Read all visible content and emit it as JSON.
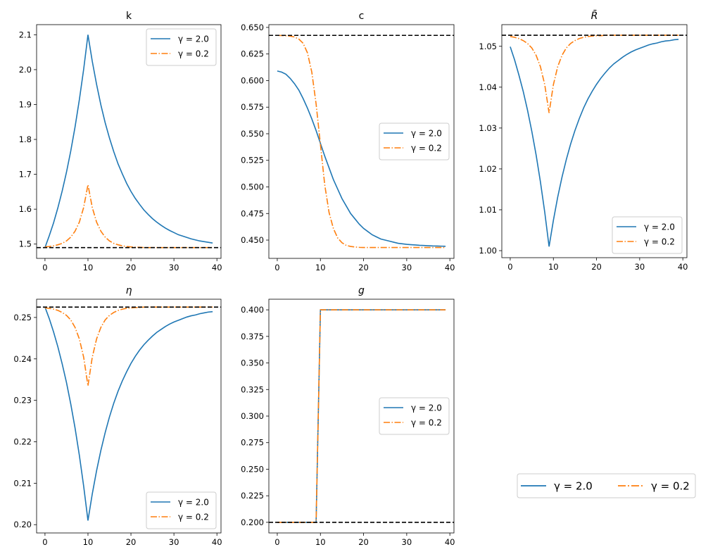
{
  "colors": {
    "series_1": "#1f77b4",
    "series_2": "#ff7f0e",
    "steady_state": "#000000"
  },
  "figure_legend": {
    "placement": "lower-right",
    "orientation": "horizontal",
    "entries": [
      "γ = 2.0",
      "γ = 0.2"
    ]
  },
  "chart_data": [
    {
      "type": "line",
      "title": "k",
      "title_italic": false,
      "legend": "upper-right",
      "xlim": [
        -1.95,
        40.95
      ],
      "ylim": [
        1.459,
        2.129
      ],
      "xticks": [
        0,
        10,
        20,
        30,
        40
      ],
      "xtick_labels": [
        "0",
        "10",
        "20",
        "30",
        "40"
      ],
      "yticks": [
        1.5,
        1.6,
        1.7,
        1.8,
        1.9,
        2.0,
        2.1
      ],
      "ytick_labels": [
        "1.5",
        "1.6",
        "1.7",
        "1.8",
        "1.9",
        "2.0",
        "2.1"
      ],
      "steady_state": 1.49,
      "x": [
        0,
        1,
        2,
        3,
        4,
        5,
        6,
        7,
        8,
        9,
        10,
        11,
        12,
        13,
        14,
        15,
        16,
        17,
        18,
        19,
        20,
        21,
        22,
        23,
        24,
        25,
        26,
        27,
        28,
        29,
        30,
        31,
        32,
        33,
        34,
        35,
        36,
        37,
        38,
        39
      ],
      "series": [
        {
          "name": "γ = 2.0",
          "style": "solid",
          "values": [
            1.49,
            1.524,
            1.561,
            1.604,
            1.652,
            1.706,
            1.767,
            1.836,
            1.914,
            2.001,
            2.1,
            2.024,
            1.958,
            1.899,
            1.848,
            1.804,
            1.765,
            1.73,
            1.701,
            1.674,
            1.651,
            1.631,
            1.614,
            1.598,
            1.585,
            1.573,
            1.563,
            1.554,
            1.546,
            1.539,
            1.533,
            1.527,
            1.523,
            1.519,
            1.515,
            1.512,
            1.509,
            1.507,
            1.505,
            1.503
          ]
        },
        {
          "name": "γ = 0.2",
          "style": "dashdot",
          "values": [
            1.492,
            1.493,
            1.495,
            1.498,
            1.502,
            1.509,
            1.52,
            1.537,
            1.563,
            1.605,
            1.67,
            1.605,
            1.563,
            1.537,
            1.52,
            1.509,
            1.502,
            1.498,
            1.495,
            1.493,
            1.492,
            1.491,
            1.491,
            1.49,
            1.49,
            1.49,
            1.49,
            1.49,
            1.49,
            1.49,
            1.49,
            1.49,
            1.49,
            1.49,
            1.49,
            1.49,
            1.49,
            1.49,
            1.49,
            1.49
          ]
        }
      ]
    },
    {
      "type": "line",
      "title": "c",
      "title_italic": false,
      "legend": "center-right",
      "xlim": [
        -1.95,
        40.95
      ],
      "ylim": [
        0.4328,
        0.6526
      ],
      "xticks": [
        0,
        10,
        20,
        30,
        40
      ],
      "xtick_labels": [
        "0",
        "10",
        "20",
        "30",
        "40"
      ],
      "yticks": [
        0.45,
        0.475,
        0.5,
        0.525,
        0.55,
        0.575,
        0.6,
        0.625,
        0.65
      ],
      "ytick_labels": [
        "0.450",
        "0.475",
        "0.500",
        "0.525",
        "0.550",
        "0.575",
        "0.600",
        "0.625",
        "0.650"
      ],
      "steady_state": 0.6425,
      "x": [
        0,
        1,
        2,
        3,
        4,
        5,
        6,
        7,
        8,
        9,
        10,
        11,
        12,
        13,
        14,
        15,
        16,
        17,
        18,
        19,
        20,
        21,
        22,
        23,
        24,
        25,
        26,
        27,
        28,
        29,
        30,
        31,
        32,
        33,
        34,
        35,
        36,
        37,
        38,
        39
      ],
      "series": [
        {
          "name": "γ = 2.0",
          "style": "solid",
          "values": [
            0.609,
            0.608,
            0.606,
            0.602,
            0.597,
            0.591,
            0.583,
            0.574,
            0.564,
            0.553,
            0.541,
            0.529,
            0.518,
            0.507,
            0.498,
            0.489,
            0.482,
            0.475,
            0.47,
            0.465,
            0.461,
            0.458,
            0.455,
            0.453,
            0.451,
            0.45,
            0.449,
            0.448,
            0.447,
            0.4465,
            0.446,
            0.4457,
            0.4454,
            0.4451,
            0.4449,
            0.4447,
            0.4445,
            0.4444,
            0.4443,
            0.4442
          ]
        },
        {
          "name": "γ = 0.2",
          "style": "dashdot",
          "values": [
            0.6425,
            0.6424,
            0.6422,
            0.6418,
            0.641,
            0.639,
            0.635,
            0.626,
            0.608,
            0.578,
            0.54,
            0.502,
            0.476,
            0.461,
            0.452,
            0.4475,
            0.445,
            0.444,
            0.4435,
            0.4432,
            0.443,
            0.443,
            0.443,
            0.443,
            0.443,
            0.443,
            0.443,
            0.443,
            0.443,
            0.443,
            0.443,
            0.443,
            0.443,
            0.443,
            0.443,
            0.443,
            0.443,
            0.443,
            0.443,
            0.443
          ]
        }
      ]
    },
    {
      "type": "line",
      "title": "R̄",
      "title_italic": true,
      "legend": "lower-right",
      "xlim": [
        -1.95,
        40.95
      ],
      "ylim": [
        0.99828,
        1.0553
      ],
      "xticks": [
        0,
        10,
        20,
        30,
        40
      ],
      "xtick_labels": [
        "0",
        "10",
        "20",
        "30",
        "40"
      ],
      "yticks": [
        1.0,
        1.01,
        1.02,
        1.03,
        1.04,
        1.05
      ],
      "ytick_labels": [
        "1.00",
        "1.01",
        "1.02",
        "1.03",
        "1.04",
        "1.05"
      ],
      "steady_state": 1.0527,
      "x": [
        0,
        1,
        2,
        3,
        4,
        5,
        6,
        7,
        8,
        9,
        10,
        11,
        12,
        13,
        14,
        15,
        16,
        17,
        18,
        19,
        20,
        21,
        22,
        23,
        24,
        25,
        26,
        27,
        28,
        29,
        30,
        31,
        32,
        33,
        34,
        35,
        36,
        37,
        38,
        39
      ],
      "series": [
        {
          "name": "γ = 2.0",
          "style": "solid",
          "values": [
            1.0499,
            1.0467,
            1.043,
            1.039,
            1.0344,
            1.0292,
            1.0234,
            1.0168,
            1.0094,
            1.001,
            1.0074,
            1.0131,
            1.018,
            1.0223,
            1.0261,
            1.0294,
            1.0323,
            1.0349,
            1.0371,
            1.039,
            1.0407,
            1.0422,
            1.0435,
            1.0447,
            1.0457,
            1.0465,
            1.0473,
            1.048,
            1.0486,
            1.0491,
            1.0495,
            1.0499,
            1.0503,
            1.0506,
            1.0508,
            1.0511,
            1.0513,
            1.0514,
            1.0516,
            1.0517
          ]
        },
        {
          "name": "γ = 0.2",
          "style": "dashdot",
          "values": [
            1.0524,
            1.0522,
            1.0519,
            1.0514,
            1.0507,
            1.0496,
            1.0478,
            1.045,
            1.0406,
            1.0337,
            1.0406,
            1.045,
            1.0478,
            1.0496,
            1.0507,
            1.0514,
            1.0519,
            1.0522,
            1.0524,
            1.0525,
            1.0526,
            1.0526,
            1.0527,
            1.0527,
            1.0527,
            1.0527,
            1.0527,
            1.0527,
            1.0527,
            1.0527,
            1.0527,
            1.0527,
            1.0527,
            1.0527,
            1.0527,
            1.0527,
            1.0527,
            1.0527,
            1.0527,
            1.0527
          ]
        }
      ]
    },
    {
      "type": "line",
      "title": "η",
      "title_italic": true,
      "legend": "lower-right",
      "xlim": [
        -1.95,
        40.95
      ],
      "ylim": [
        0.198,
        0.2544
      ],
      "xticks": [
        0,
        10,
        20,
        30,
        40
      ],
      "xtick_labels": [
        "0",
        "10",
        "20",
        "30",
        "40"
      ],
      "yticks": [
        0.2,
        0.21,
        0.22,
        0.23,
        0.24,
        0.25
      ],
      "ytick_labels": [
        "0.20",
        "0.21",
        "0.22",
        "0.23",
        "0.24",
        "0.25"
      ],
      "steady_state": 0.2525,
      "x": [
        0,
        1,
        2,
        3,
        4,
        5,
        6,
        7,
        8,
        9,
        10,
        11,
        12,
        13,
        14,
        15,
        16,
        17,
        18,
        19,
        20,
        21,
        22,
        23,
        24,
        25,
        26,
        27,
        28,
        29,
        30,
        31,
        32,
        33,
        34,
        35,
        36,
        37,
        38,
        39
      ],
      "series": [
        {
          "name": "γ = 2.0",
          "style": "solid",
          "values": [
            0.2525,
            0.2497,
            0.2465,
            0.2429,
            0.2388,
            0.2343,
            0.2291,
            0.2233,
            0.2167,
            0.2093,
            0.201,
            0.2074,
            0.213,
            0.2179,
            0.2222,
            0.226,
            0.2293,
            0.2322,
            0.2347,
            0.2369,
            0.2389,
            0.2406,
            0.2421,
            0.2434,
            0.2445,
            0.2455,
            0.2464,
            0.2471,
            0.2478,
            0.2484,
            0.2489,
            0.2493,
            0.2497,
            0.2501,
            0.2504,
            0.2506,
            0.2509,
            0.2511,
            0.2513,
            0.2514
          ]
        },
        {
          "name": "γ = 0.2",
          "style": "dashdot",
          "values": [
            0.2523,
            0.2522,
            0.252,
            0.2517,
            0.2512,
            0.2505,
            0.2494,
            0.2476,
            0.2448,
            0.2404,
            0.2335,
            0.2404,
            0.2448,
            0.2476,
            0.2494,
            0.2505,
            0.2512,
            0.2517,
            0.252,
            0.2522,
            0.2523,
            0.2524,
            0.2524,
            0.2525,
            0.2525,
            0.2525,
            0.2525,
            0.2525,
            0.2525,
            0.2525,
            0.2525,
            0.2525,
            0.2525,
            0.2525,
            0.2525,
            0.2525,
            0.2525,
            0.2525,
            0.2525,
            0.2525
          ]
        }
      ]
    },
    {
      "type": "line",
      "title": "g",
      "title_italic": true,
      "legend": "center-right",
      "xlim": [
        -1.95,
        40.95
      ],
      "ylim": [
        0.19,
        0.41
      ],
      "xticks": [
        0,
        10,
        20,
        30,
        40
      ],
      "xtick_labels": [
        "0",
        "10",
        "20",
        "30",
        "40"
      ],
      "yticks": [
        0.2,
        0.225,
        0.25,
        0.275,
        0.3,
        0.325,
        0.35,
        0.375,
        0.4
      ],
      "ytick_labels": [
        "0.200",
        "0.225",
        "0.250",
        "0.275",
        "0.300",
        "0.325",
        "0.350",
        "0.375",
        "0.400"
      ],
      "steady_state": 0.2,
      "x": [
        0,
        1,
        2,
        3,
        4,
        5,
        6,
        7,
        8,
        9,
        10,
        11,
        12,
        13,
        14,
        15,
        16,
        17,
        18,
        19,
        20,
        21,
        22,
        23,
        24,
        25,
        26,
        27,
        28,
        29,
        30,
        31,
        32,
        33,
        34,
        35,
        36,
        37,
        38,
        39
      ],
      "series": [
        {
          "name": "γ = 2.0",
          "style": "solid",
          "values": [
            0.2,
            0.2,
            0.2,
            0.2,
            0.2,
            0.2,
            0.2,
            0.2,
            0.2,
            0.2,
            0.4,
            0.4,
            0.4,
            0.4,
            0.4,
            0.4,
            0.4,
            0.4,
            0.4,
            0.4,
            0.4,
            0.4,
            0.4,
            0.4,
            0.4,
            0.4,
            0.4,
            0.4,
            0.4,
            0.4,
            0.4,
            0.4,
            0.4,
            0.4,
            0.4,
            0.4,
            0.4,
            0.4,
            0.4,
            0.4
          ]
        },
        {
          "name": "γ = 0.2",
          "style": "dashdot",
          "values": [
            0.2,
            0.2,
            0.2,
            0.2,
            0.2,
            0.2,
            0.2,
            0.2,
            0.2,
            0.2,
            0.4,
            0.4,
            0.4,
            0.4,
            0.4,
            0.4,
            0.4,
            0.4,
            0.4,
            0.4,
            0.4,
            0.4,
            0.4,
            0.4,
            0.4,
            0.4,
            0.4,
            0.4,
            0.4,
            0.4,
            0.4,
            0.4,
            0.4,
            0.4,
            0.4,
            0.4,
            0.4,
            0.4,
            0.4,
            0.4
          ]
        }
      ]
    }
  ]
}
